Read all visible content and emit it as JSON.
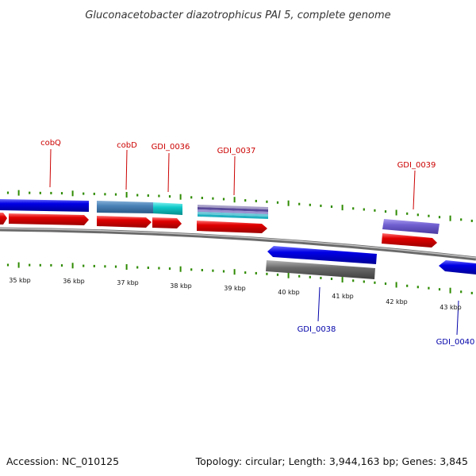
{
  "title": "Gluconacetobacter diazotrophicus PAI 5, complete genome",
  "footer": {
    "accession": "Accession: NC_010125",
    "summary": "Topology: circular; Length: 3,944,163 bp; Genes: 3,845"
  },
  "colors": {
    "forward_label": "#cc0000",
    "reverse_label": "#0000aa",
    "tick": "#2e8b00",
    "backbone": "#808080",
    "red_feature": "#e00000",
    "blue_feature": "#0000e6",
    "steel_feature": "#4a82b8",
    "cyan_feature": "#10c8c8",
    "purple_feature": "#7060d0",
    "gray_feature": "#6a6a6a"
  },
  "scale_labels": [
    {
      "text": "35 kbp"
    },
    {
      "text": "36 kbp"
    },
    {
      "text": "37 kbp"
    },
    {
      "text": "38 kbp"
    },
    {
      "text": "39 kbp"
    },
    {
      "text": "40 kbp"
    },
    {
      "text": "41 kbp"
    },
    {
      "text": "42 kbp"
    },
    {
      "text": "43 kbp"
    }
  ],
  "gene_labels": {
    "cobQ": "cobQ",
    "cobD": "cobD",
    "GDI_0036": "GDI_0036",
    "GDI_0037": "GDI_0037",
    "GDI_0038": "GDI_0038",
    "GDI_0039": "GDI_0039",
    "GDI_0040": "GDI_0040"
  }
}
